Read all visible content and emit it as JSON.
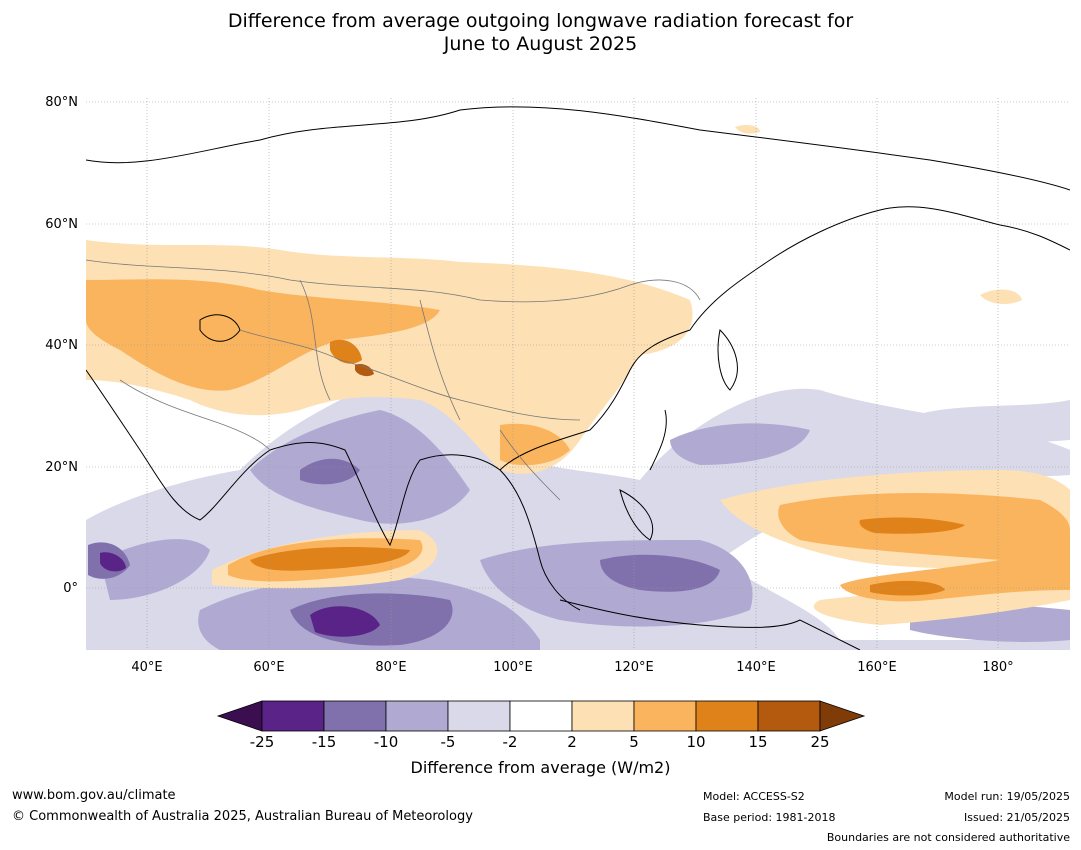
{
  "title": {
    "line1": "Difference from average outgoing longwave radiation forecast for",
    "line2": "June to August 2025"
  },
  "map": {
    "lat_labels": [
      "80°N",
      "60°N",
      "40°N",
      "20°N",
      "0°"
    ],
    "lon_labels": [
      "40°E",
      "60°E",
      "80°E",
      "100°E",
      "120°E",
      "140°E",
      "160°E",
      "180°"
    ]
  },
  "colorbar": {
    "ticks": [
      "-25",
      "-15",
      "-10",
      "-5",
      "-2",
      "2",
      "5",
      "10",
      "15",
      "25"
    ],
    "colors": [
      "#3b0f4f",
      "#5a2387",
      "#8071ad",
      "#b0aad2",
      "#d9d9ea",
      "#ffffff",
      "#fde0b4",
      "#fbb45e",
      "#e0821a",
      "#b45a0e",
      "#7f3b08"
    ],
    "label": "Difference from average (W/m2)"
  },
  "footer": {
    "website": "www.bom.gov.au/climate",
    "copyright": "© Commonwealth of Australia 2025, Australian Bureau of Meteorology",
    "model": "Model: ACCESS-S2",
    "base_period": "Base period: 1981-2018",
    "model_run": "Model run: 19/05/2025",
    "issued": "Issued: 21/05/2025",
    "disclaimer": "Boundaries are not considered authoritative"
  }
}
